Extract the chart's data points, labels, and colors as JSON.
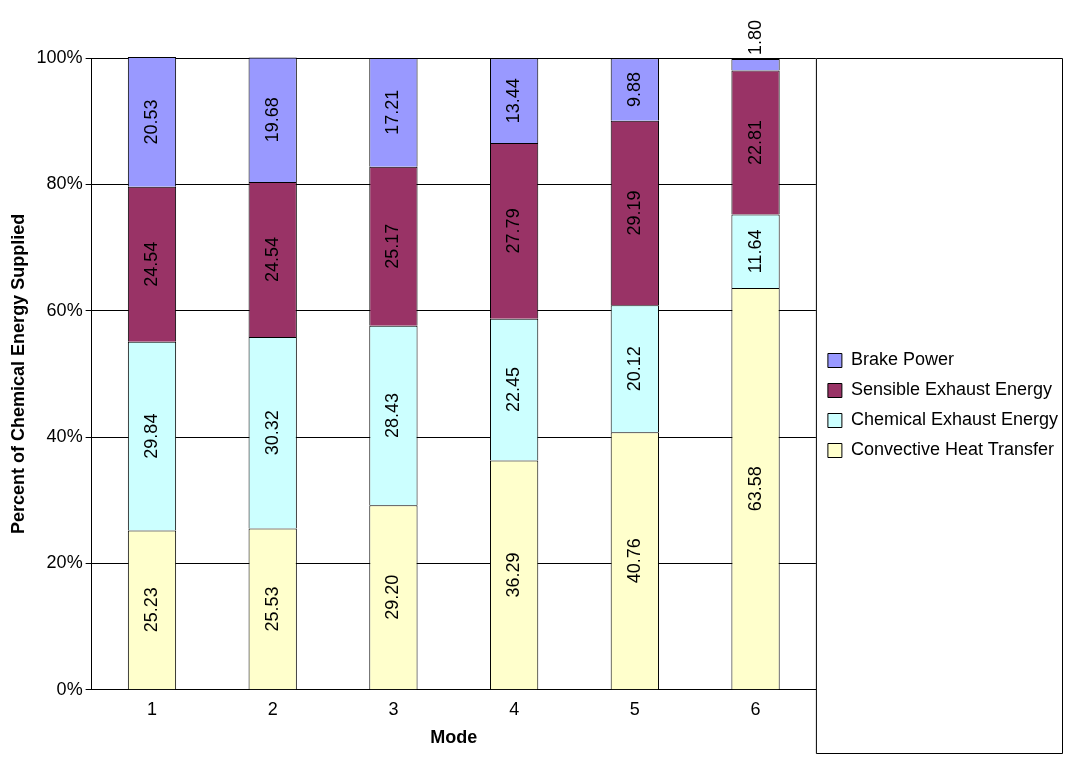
{
  "chart_data": {
    "type": "bar",
    "stacked": true,
    "xlabel": "Mode",
    "ylabel": "Percent of Chemical Energy Supplied",
    "categories": [
      "1",
      "2",
      "3",
      "4",
      "5",
      "6"
    ],
    "series": [
      {
        "name": "Convective Heat Transfer",
        "color": "#ffffcc",
        "values": [
          25.23,
          25.53,
          29.2,
          36.29,
          40.76,
          63.58
        ],
        "value_labels": [
          "25.23",
          "25.53",
          "29.20",
          "36.29",
          "40.76",
          "63.58"
        ]
      },
      {
        "name": "Chemical Exhaust Energy",
        "color": "#ccffff",
        "values": [
          29.84,
          30.32,
          28.43,
          22.45,
          20.12,
          11.64
        ],
        "value_labels": [
          "29.84",
          "30.32",
          "28.43",
          "22.45",
          "20.12",
          "11.64"
        ]
      },
      {
        "name": "Sensible Exhaust Energy",
        "color": "#993366",
        "values": [
          24.54,
          24.54,
          25.17,
          27.79,
          29.19,
          22.81
        ],
        "value_labels": [
          "24.54",
          "24.54",
          "25.17",
          "27.79",
          "29.19",
          "22.81"
        ]
      },
      {
        "name": "Brake Power",
        "color": "#9999ff",
        "values": [
          20.53,
          19.68,
          17.21,
          13.44,
          9.88,
          1.8
        ],
        "value_labels": [
          "20.53",
          "19.68",
          "17.21",
          "13.44",
          "9.88",
          "1.80"
        ]
      }
    ],
    "ylim": [
      0,
      100
    ],
    "yticks": [
      {
        "value": 0,
        "label": "0%"
      },
      {
        "value": 20,
        "label": "20%"
      },
      {
        "value": 40,
        "label": "40%"
      },
      {
        "value": 60,
        "label": "60%"
      },
      {
        "value": 80,
        "label": "80%"
      },
      {
        "value": 100,
        "label": "100%"
      }
    ],
    "grid": "y",
    "legend": "right"
  }
}
